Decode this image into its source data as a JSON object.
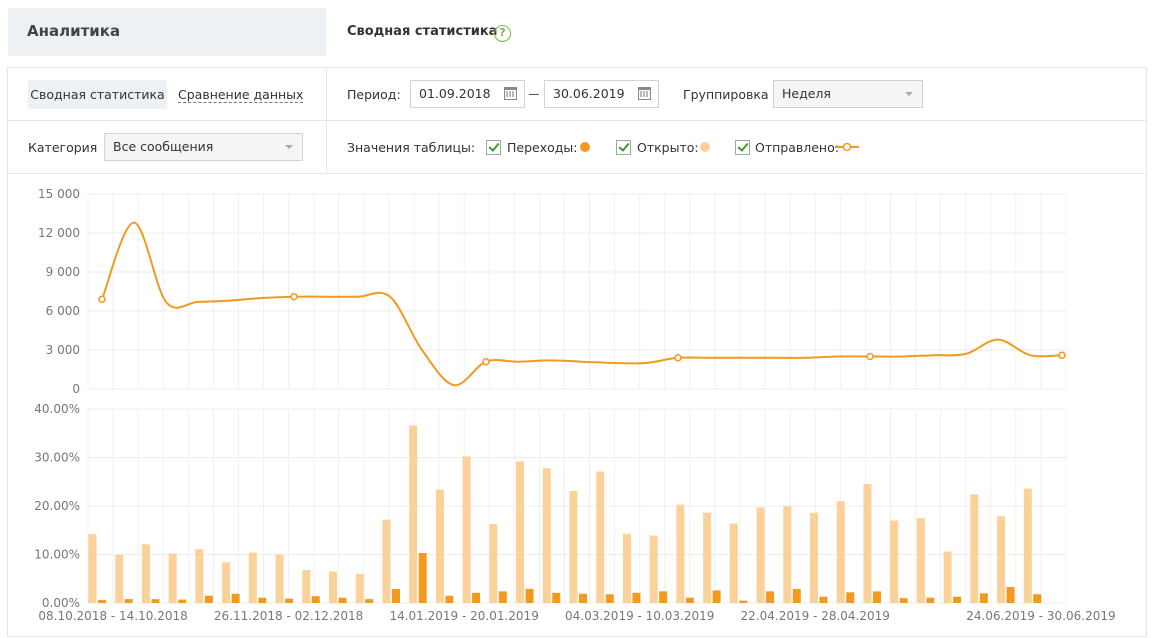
{
  "sidebar": {
    "title": "Аналитика"
  },
  "header": {
    "title": "Сводная статистика",
    "help_icon": "question-circle-icon"
  },
  "tabs": {
    "active": "Сводная статистика",
    "other": "Сравнение данных"
  },
  "filters": {
    "period_label": "Период:",
    "date_from": "01.09.2018",
    "date_to": "30.06.2019",
    "grouping_label": "Группировка",
    "grouping_value": "Неделя",
    "category_label": "Категория",
    "category_value": "Все сообщения",
    "table_values_label": "Значения таблицы:",
    "checkboxes": [
      {
        "label": "Переходы:",
        "checked": true,
        "color": "#f29a1f",
        "marker": "dot"
      },
      {
        "label": "Открыто:",
        "checked": true,
        "color": "#fbd19a",
        "marker": "dot"
      },
      {
        "label": "Отправлено:",
        "checked": true,
        "color": "#f29a1f",
        "marker": "line-ring"
      }
    ]
  },
  "colors": {
    "accent": "#f29a1f",
    "light": "#fbd19a",
    "help": "#6bbf3a"
  },
  "chart_data": [
    {
      "type": "line",
      "series": [
        {
          "values": [
            6900,
            12800,
            6700,
            6700,
            6800,
            7000,
            7100,
            7100,
            7100,
            7100,
            3000,
            300,
            2100,
            2100,
            2200,
            2100,
            2000,
            2000,
            2400,
            2400,
            2400,
            2400,
            2400,
            2500,
            2500,
            2500,
            2600,
            2700,
            3800,
            2600,
            2600
          ]
        }
      ],
      "ylim": [
        0,
        15000
      ],
      "yticks": [
        "0",
        "3 000",
        "6 000",
        "9 000",
        "12 000",
        "15 000"
      ],
      "ytick_values": [
        0,
        3000,
        6000,
        9000,
        12000,
        15000
      ],
      "grid": true
    },
    {
      "type": "bar",
      "series": [
        {
          "values": [
            14.2,
            9.9,
            12.1,
            10.2,
            11.1,
            8.4,
            10.4,
            10.0,
            6.8,
            6.5,
            6.0,
            17.2,
            36.6,
            23.4,
            30.2,
            16.3,
            29.2,
            27.8,
            23.1,
            27.1,
            14.3,
            13.9,
            20.3,
            18.6,
            16.4,
            19.7,
            19.9,
            18.6,
            21.0,
            24.5,
            17.0,
            17.5,
            10.6,
            22.4,
            17.9,
            23.6
          ]
        },
        {
          "values": [
            0.6,
            0.8,
            0.8,
            0.7,
            1.5,
            1.9,
            1.1,
            0.9,
            1.4,
            1.1,
            0.8,
            2.9,
            10.3,
            1.5,
            2.1,
            2.4,
            2.9,
            2.1,
            1.9,
            1.8,
            2.1,
            2.4,
            1.1,
            2.6,
            0.5,
            2.4,
            2.9,
            1.3,
            2.2,
            2.4,
            1.0,
            1.1,
            1.3,
            2.0,
            3.3,
            1.8
          ]
        }
      ],
      "ylim": [
        0,
        40
      ],
      "yticks": [
        "0.00%",
        "10.00%",
        "20.00%",
        "30.00%",
        "40.00%"
      ],
      "ytick_values": [
        0,
        10,
        20,
        30,
        40
      ],
      "xticks": [
        "08.10.2018 - 14.10.2018",
        "26.11.2018 - 02.12.2018",
        "14.01.2019 - 20.01.2019",
        "04.03.2019 - 10.03.2019",
        "22.04.2019 - 28.04.2019",
        "24.06.2019 - 30.06.2019"
      ],
      "xtick_indices": [
        1,
        8,
        15,
        22,
        29,
        38
      ],
      "category_count": 39,
      "bar_start_index": 0,
      "grid": true
    }
  ]
}
